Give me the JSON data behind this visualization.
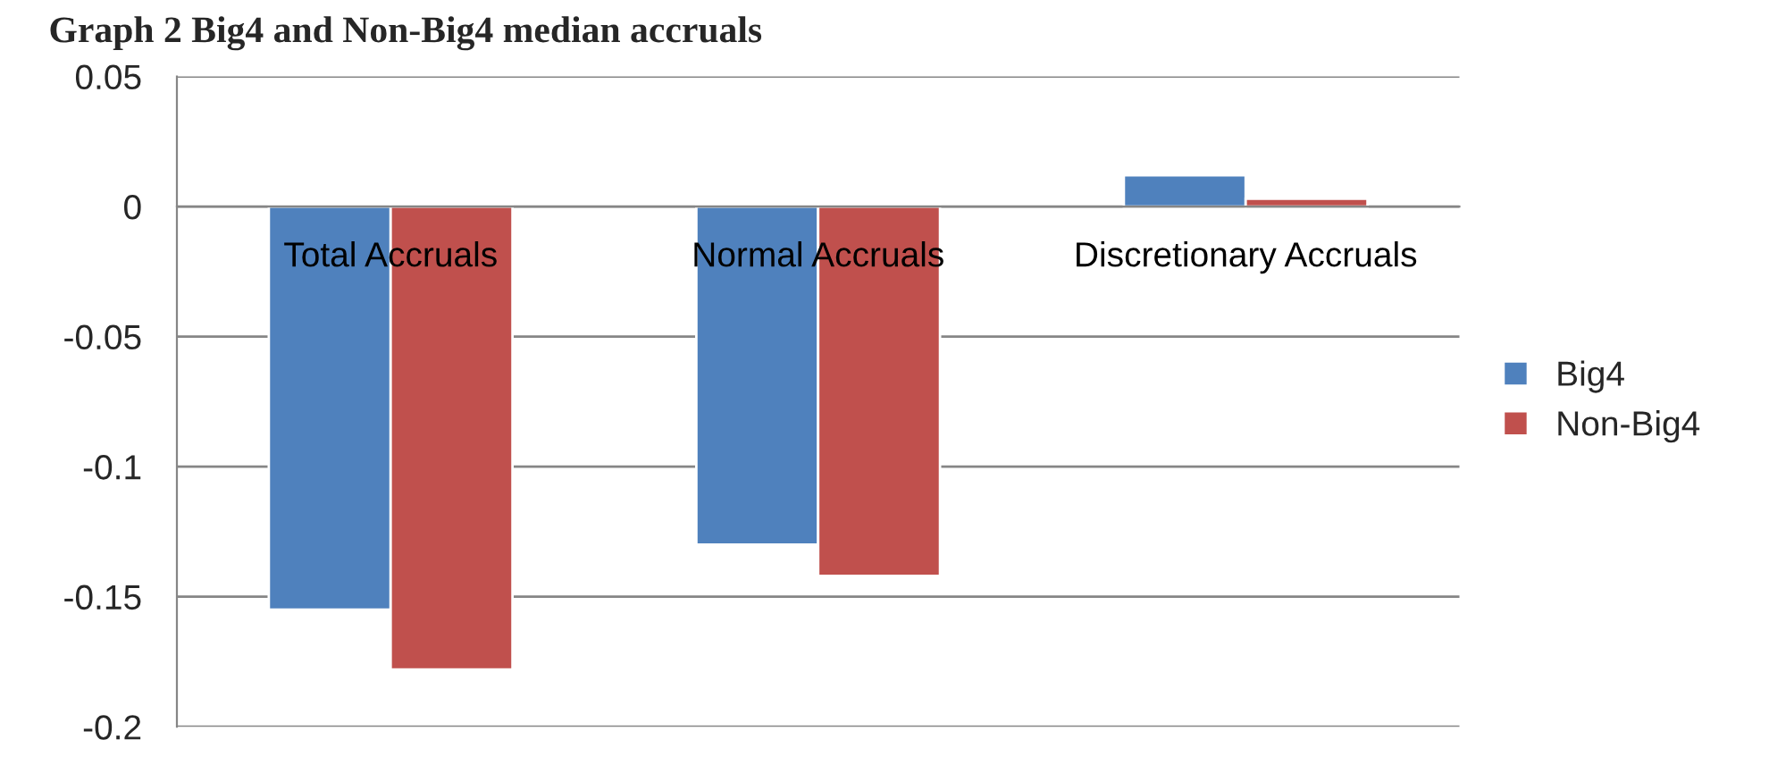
{
  "chart_data": {
    "type": "bar",
    "title": "Graph 2 Big4 and Non-Big4 median accruals",
    "categories": [
      "Total Accruals",
      "Normal Accruals",
      "Discretionary Accruals"
    ],
    "series": [
      {
        "name": "Big4",
        "color": "#4f81bd",
        "values": [
          -0.155,
          -0.13,
          0.012
        ]
      },
      {
        "name": "Non-Big4",
        "color": "#c0504d",
        "values": [
          -0.178,
          -0.142,
          0.003
        ]
      }
    ],
    "ylim": [
      -0.2,
      0.05
    ],
    "yticks": [
      {
        "value": -0.2,
        "label": "-0.2"
      },
      {
        "value": -0.15,
        "label": "-0.15"
      },
      {
        "value": -0.1,
        "label": "-0.1"
      },
      {
        "value": -0.05,
        "label": "-0.05"
      },
      0,
      0.05
    ],
    "grid": "y",
    "legend": "right"
  }
}
